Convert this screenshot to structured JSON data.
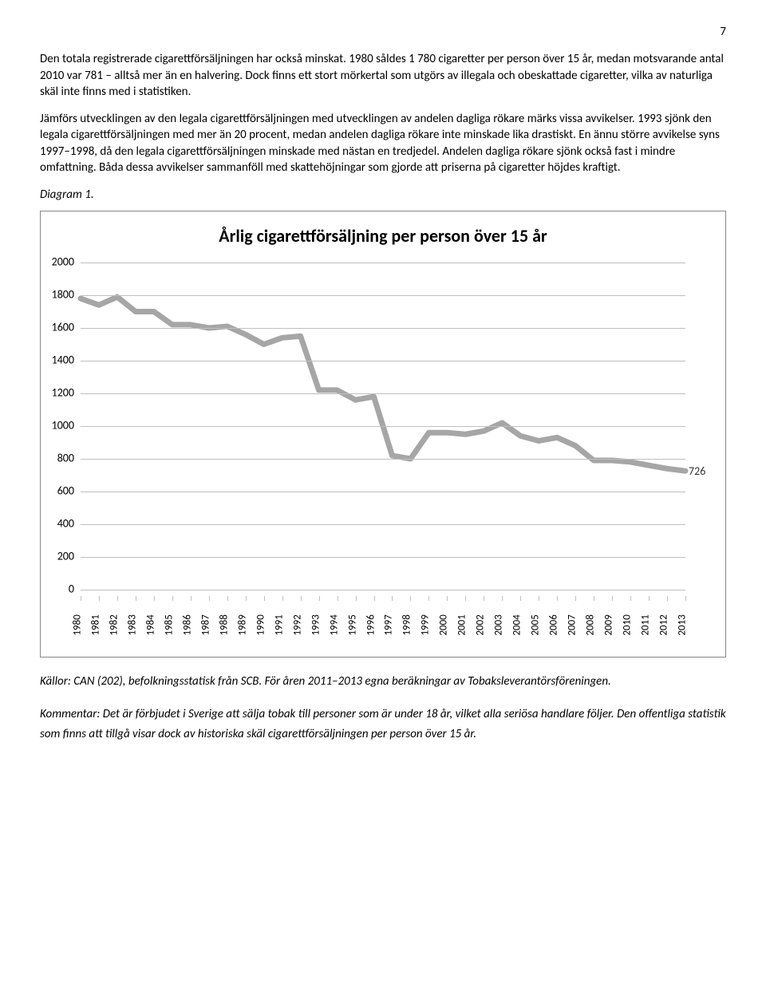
{
  "page_number": "7",
  "paragraphs": {
    "p1": "Den totala registrerade cigarettförsäljningen har också minskat. 1980 såldes 1 780 cigaretter per person över 15 år, medan motsvarande antal 2010 var 781 – alltså mer än en halvering. Dock finns ett stort mörkertal som utgörs av illegala och obeskattade cigaretter, vilka av naturliga skäl inte finns med i statistiken.",
    "p2": "Jämförs utvecklingen av den legala cigarettförsäljningen med utvecklingen av andelen dagliga rökare märks vissa avvikelser. 1993 sjönk den legala cigarettförsäljningen med mer än 20 procent, medan andelen dagliga rökare inte minskade lika drastiskt. En ännu större avvikelse syns 1997–1998, då den legala cigarettförsäljningen minskade med nästan en tredjedel. Andelen dagliga rökare sjönk också fast i mindre omfattning. Båda dessa avvikelser sammanföll med skattehöjningar som gjorde att priserna på cigaretter höjdes kraftigt."
  },
  "diagram_label": "Diagram 1.",
  "chart": {
    "type": "line",
    "title": "Årlig cigarettförsäljning per person över 15 år",
    "ylim": [
      0,
      2000
    ],
    "ytick_step": 200,
    "yticks": [
      0,
      200,
      400,
      600,
      800,
      1000,
      1200,
      1400,
      1600,
      1800,
      2000
    ],
    "xticks": [
      "1980",
      "1981",
      "1982",
      "1983",
      "1984",
      "1985",
      "1986",
      "1987",
      "1988",
      "1989",
      "1990",
      "1991",
      "1992",
      "1993",
      "1994",
      "1995",
      "1996",
      "1997",
      "1998",
      "1999",
      "2000",
      "2001",
      "2002",
      "2003",
      "2004",
      "2005",
      "2006",
      "2007",
      "2008",
      "2009",
      "2010",
      "2011",
      "2012",
      "2013"
    ],
    "values": [
      1780,
      1740,
      1790,
      1700,
      1700,
      1620,
      1620,
      1600,
      1610,
      1560,
      1500,
      1540,
      1550,
      1220,
      1220,
      1160,
      1180,
      820,
      800,
      960,
      960,
      950,
      970,
      1020,
      940,
      910,
      930,
      880,
      790,
      790,
      781,
      760,
      740,
      726
    ],
    "line_color": "#a6a6a6",
    "line_width": 3.5,
    "grid_color": "#bfbfbf",
    "background_color": "#ffffff",
    "title_fontsize": 22,
    "label_fontsize": 14,
    "end_label": "726"
  },
  "sources": "Källor: CAN (202), befolkningsstatisk från SCB. För åren 2011–2013 egna beräkningar av Tobaksleverantörsföreningen.",
  "comment": "Kommentar: Det är förbjudet i Sverige att sälja tobak till personer som är under 18 år, vilket alla seriösa handlare följer. Den offentliga statistik som finns att tillgå visar dock av historiska skäl cigarettförsäljningen per person över 15 år."
}
